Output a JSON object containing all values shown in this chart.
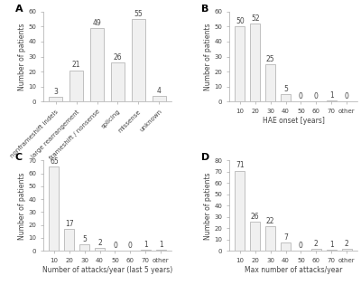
{
  "A": {
    "categories": [
      "nonframeshift indels",
      "large rearrangement",
      "frameshift / nonsense",
      "splicing",
      "missense",
      "unknown"
    ],
    "values": [
      3,
      21,
      49,
      26,
      55,
      4
    ],
    "xlabel": "",
    "ylabel": "Number of patients",
    "ylim": [
      0,
      60
    ],
    "yticks": [
      0,
      10,
      20,
      30,
      40,
      50,
      60
    ],
    "label": "A",
    "rotate_xticks": true
  },
  "B": {
    "categories": [
      "10",
      "20",
      "30",
      "40",
      "50",
      "60",
      "70",
      "other"
    ],
    "values": [
      50,
      52,
      25,
      5,
      0,
      0,
      1,
      0
    ],
    "xlabel": "HAE onset [years]",
    "ylabel": "Number of patients",
    "ylim": [
      0,
      60
    ],
    "yticks": [
      0,
      10,
      20,
      30,
      40,
      50,
      60
    ],
    "label": "B",
    "rotate_xticks": false
  },
  "C": {
    "categories": [
      "10",
      "20",
      "30",
      "40",
      "50",
      "60",
      "70",
      "other"
    ],
    "values": [
      65,
      17,
      5,
      2,
      0,
      0,
      1,
      1
    ],
    "xlabel": "Number of attacks/year (last 5 years)",
    "ylabel": "Number of patients",
    "ylim": [
      0,
      70
    ],
    "yticks": [
      0,
      10,
      20,
      30,
      40,
      50,
      60,
      70
    ],
    "label": "C",
    "rotate_xticks": false
  },
  "D": {
    "categories": [
      "10",
      "20",
      "30",
      "40",
      "50",
      "60",
      "70",
      "other"
    ],
    "values": [
      71,
      26,
      22,
      7,
      0,
      2,
      1,
      2
    ],
    "xlabel": "Max number of attacks/year",
    "ylabel": "Number of patients",
    "ylim": [
      0,
      80
    ],
    "yticks": [
      0,
      10,
      20,
      30,
      40,
      50,
      60,
      70,
      80
    ],
    "label": "D",
    "rotate_xticks": false
  },
  "bar_facecolor": "#f0f0f0",
  "bar_edgecolor": "#aaaaaa",
  "text_color": "#444444",
  "spine_color": "#aaaaaa",
  "fontsize_ylabel": 5.5,
  "fontsize_xlabel": 5.5,
  "fontsize_tick": 5.0,
  "fontsize_bar_label": 5.5,
  "fontsize_panel_label": 8
}
